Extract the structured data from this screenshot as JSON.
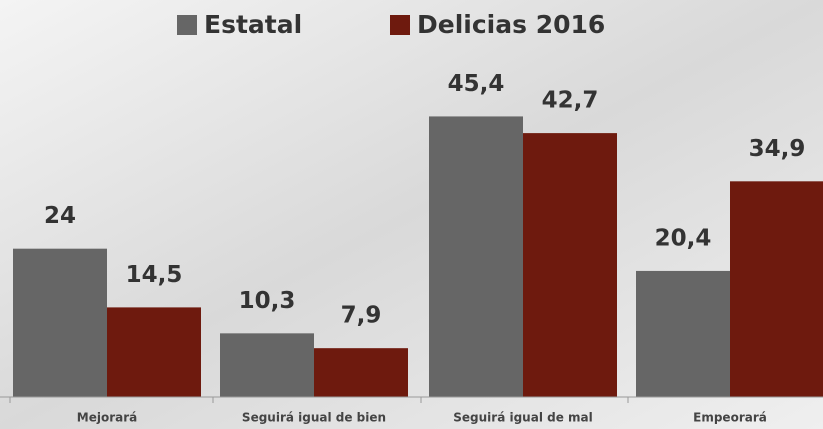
{
  "chart_data": {
    "type": "bar",
    "categories": [
      "Mejorará",
      "Seguirá igual de bien",
      "Seguirá igual de mal",
      "Empeorará"
    ],
    "series": [
      {
        "name": "Estatal",
        "color": "#666666",
        "values": [
          24,
          10.3,
          45.4,
          20.4
        ],
        "value_labels": [
          "24",
          "10,3",
          "45,4",
          "20,4"
        ]
      },
      {
        "name": "Delicias 2016",
        "color": "#6e1a0e",
        "values": [
          14.5,
          7.9,
          42.7,
          34.9
        ],
        "value_labels": [
          "14,5",
          "7,9",
          "42,7",
          "34,9"
        ]
      }
    ]
  }
}
